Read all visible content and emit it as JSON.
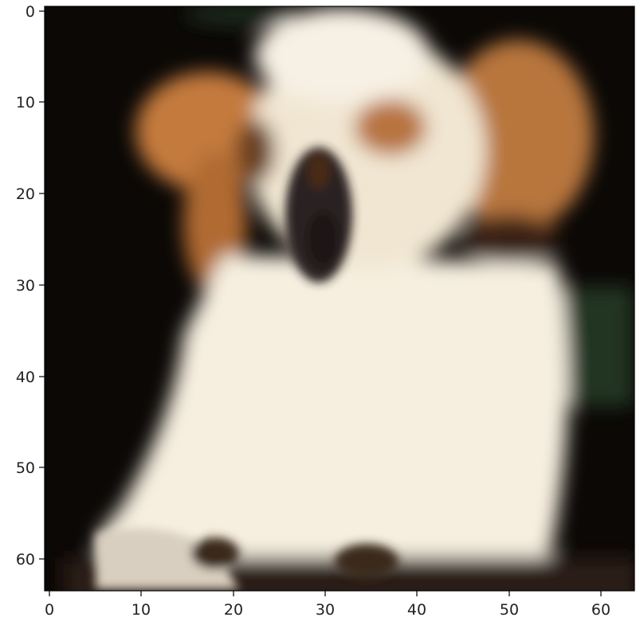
{
  "image": {
    "subject": "dog",
    "description": "blurry low-resolution photo of a small white and tan puppy on a black background",
    "grid_size": [
      64,
      64
    ]
  },
  "axes": {
    "x": {
      "ticks": [
        0,
        10,
        20,
        30,
        40,
        50,
        60
      ],
      "tick_labels": [
        "0",
        "10",
        "20",
        "30",
        "40",
        "50",
        "60"
      ],
      "range": [
        -0.5,
        63.5
      ]
    },
    "y": {
      "ticks": [
        0,
        10,
        20,
        30,
        40,
        50,
        60
      ],
      "tick_labels": [
        "0",
        "10",
        "20",
        "30",
        "40",
        "50",
        "60"
      ],
      "range": [
        -0.5,
        63.5
      ],
      "inverted": true
    }
  },
  "colors": {
    "background": "#0b0806",
    "fur_white": "#f6efe0",
    "fur_tan": "#c47a3c",
    "fur_dark": "#3a2416",
    "foliage": "#213522",
    "eye": "#1c1714"
  }
}
